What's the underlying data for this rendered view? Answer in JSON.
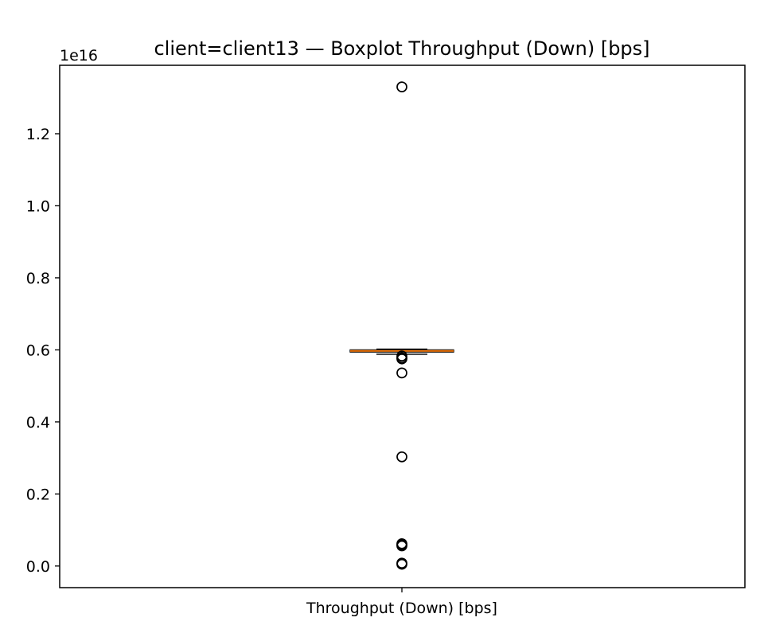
{
  "chart_data": {
    "type": "boxplot",
    "title": "client=client13 — Boxplot Throughput (Down) [bps]",
    "xlabel": "",
    "ylabel": "",
    "categories": [
      "Throughput (Down) [bps]"
    ],
    "y_offset_label": "1e16",
    "y_scale": 1e+16,
    "ylim": [
      -0.06,
      1.39
    ],
    "yticks": [
      0.0,
      0.2,
      0.4,
      0.6,
      0.8,
      1.0,
      1.2
    ],
    "ytick_labels": [
      "0.0",
      "0.2",
      "0.4",
      "0.6",
      "0.8",
      "1.0",
      "1.2"
    ],
    "grid": false,
    "box": {
      "whisker_low": 0.588,
      "q1": 0.594,
      "median": 0.597,
      "q3": 0.6,
      "whisker_high": 0.602
    },
    "outliers": [
      1.33,
      0.583,
      0.578,
      0.575,
      0.536,
      0.303,
      0.062,
      0.059,
      0.056,
      0.008,
      0.005
    ],
    "colors": {
      "median": "#ff7f0e",
      "box": "#000000",
      "outlier_edge": "#000000"
    }
  }
}
